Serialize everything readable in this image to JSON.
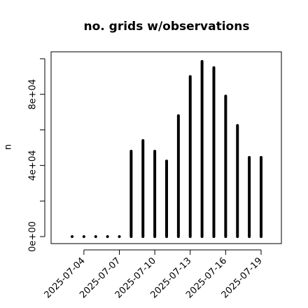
{
  "chart_data": {
    "type": "spike",
    "title": "no. grids w/observations",
    "y_label": "n",
    "x": [
      "2025-07-03",
      "2025-07-04",
      "2025-07-05",
      "2025-07-06",
      "2025-07-07",
      "2025-07-08",
      "2025-07-09",
      "2025-07-10",
      "2025-07-11",
      "2025-07-12",
      "2025-07-13",
      "2025-07-14",
      "2025-07-15",
      "2025-07-16",
      "2025-07-17",
      "2025-07-18",
      "2025-07-19"
    ],
    "values": [
      0,
      0,
      0,
      0,
      0,
      48000,
      54000,
      48000,
      42500,
      68000,
      90000,
      98500,
      95000,
      79000,
      62500,
      44500,
      44500
    ],
    "color": "#000000",
    "xlim": [
      "2025-07-01T05:20",
      "2025-07-20T17:15"
    ],
    "xticks": [
      "2025-07-04",
      "2025-07-07",
      "2025-07-10",
      "2025-07-13",
      "2025-07-16",
      "2025-07-19"
    ],
    "xtick_colors": [
      "#000000",
      "#000000",
      "#228b22",
      "#000000",
      "#000000",
      "#000000"
    ],
    "ylim": [
      -3940,
      103900
    ],
    "yticks": [
      {
        "value": 0,
        "label": "0e+00"
      },
      {
        "value": 40000,
        "label": "4e+04"
      },
      {
        "value": 80000,
        "label": "8e+04"
      }
    ],
    "yticks_minor": [
      20000,
      60000,
      100000
    ]
  }
}
